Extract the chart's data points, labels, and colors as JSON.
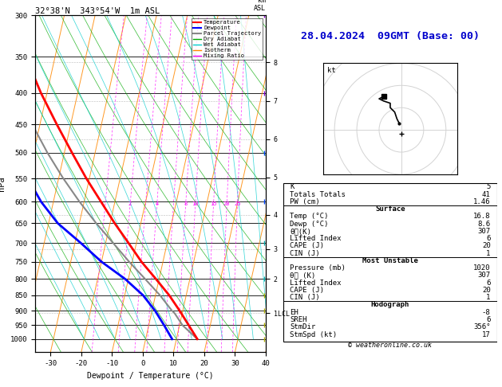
{
  "title_left": "32°38'N  343°54'W  1m ASL",
  "title_right": "28.04.2024  09GMT (Base: 00)",
  "xlabel": "Dewpoint / Temperature (°C)",
  "ylabel_left": "hPa",
  "ylabel_right": "km\nASL",
  "copyright": "© weatheronline.co.uk",
  "pressure_levels": [
    300,
    350,
    400,
    450,
    500,
    550,
    600,
    650,
    700,
    750,
    800,
    850,
    900,
    950,
    1000
  ],
  "pressure_labels": [
    "300",
    "350",
    "400",
    "450",
    "500",
    "550",
    "600",
    "650",
    "700",
    "750",
    "800",
    "850",
    "900",
    "950",
    "1000"
  ],
  "T_min": -35,
  "T_max": 40,
  "pmin": 300,
  "pmax": 1050,
  "skew_T_per_decade": 45.0,
  "legend_entries": [
    "Temperature",
    "Dewpoint",
    "Parcel Trajectory",
    "Dry Adiabat",
    "Wet Adiabat",
    "Isotherm",
    "Mixing Ratio"
  ],
  "legend_colors": [
    "#ff0000",
    "#0000ff",
    "#888888",
    "#00aa00",
    "#00cccc",
    "#ff8800",
    "#ff00ff"
  ],
  "km_pressures": [
    357,
    412,
    475,
    548,
    630,
    715,
    800,
    908
  ],
  "km_labels": [
    "8",
    "7",
    "6",
    "5",
    "4",
    "3",
    "2",
    "1LCL"
  ],
  "lcl_pressure": 908,
  "isotherm_color": "#ff8800",
  "dry_adiabat_color": "#00aa00",
  "wet_adiabat_color": "#00cccc",
  "mixing_ratio_color": "#ff00ff",
  "temp_line_color": "#ff0000",
  "dewp_line_color": "#0000ff",
  "parcel_color": "#888888",
  "temp_profile_p": [
    1000,
    950,
    900,
    850,
    800,
    750,
    700,
    650,
    600,
    550,
    500,
    450,
    400,
    350,
    300
  ],
  "temp_profile_T": [
    16.8,
    13.0,
    9.0,
    4.5,
    -1.0,
    -7.0,
    -12.5,
    -18.5,
    -24.5,
    -31.0,
    -37.5,
    -44.5,
    -52.0,
    -59.5,
    -66.0
  ],
  "dewp_profile_p": [
    1000,
    950,
    900,
    850,
    800,
    750,
    700,
    650,
    600,
    550,
    500,
    450,
    400,
    350,
    300
  ],
  "dewp_profile_T": [
    8.6,
    5.0,
    1.0,
    -4.0,
    -11.0,
    -20.0,
    -28.0,
    -37.0,
    -44.0,
    -50.0,
    -56.0,
    -62.0,
    -68.0,
    -73.0,
    -76.0
  ],
  "parcel_p": [
    1000,
    950,
    908,
    900,
    850,
    800,
    750,
    700,
    650,
    600,
    550,
    500,
    450,
    400,
    350,
    300
  ],
  "parcel_T": [
    16.8,
    11.0,
    7.5,
    6.5,
    1.5,
    -4.5,
    -11.0,
    -17.5,
    -24.5,
    -31.5,
    -38.5,
    -45.5,
    -52.5,
    -59.5,
    -66.0,
    -72.0
  ],
  "wind_pressures": [
    1000,
    950,
    900,
    850,
    800,
    700,
    600,
    500,
    400,
    300
  ],
  "wind_u": [
    -1,
    -1,
    -2,
    -3,
    -5,
    -5,
    -8,
    -10,
    -8,
    -6
  ],
  "wind_v": [
    3,
    4,
    5,
    8,
    10,
    12,
    13,
    14,
    15,
    16
  ],
  "mr_values": [
    1,
    2,
    3,
    4,
    6,
    8,
    10,
    15,
    20,
    25
  ],
  "mr_label_values": [
    2,
    4,
    8,
    10,
    15,
    20,
    25
  ],
  "surface_K": 5,
  "surface_TT": 41,
  "surface_PW": 1.46,
  "surface_temp": 16.8,
  "surface_dewp": 8.6,
  "surface_theta_e": 307,
  "surface_LI": 6,
  "surface_CAPE": 20,
  "surface_CIN": 1,
  "mu_pressure": 1020,
  "mu_theta_e": 307,
  "mu_LI": 6,
  "mu_CAPE": 20,
  "mu_CIN": 1,
  "hodo_EH": -8,
  "hodo_SREH": 6,
  "hodo_StmDir": "356°",
  "hodo_StmSpd": 17,
  "hodo_u": [
    -1,
    -2,
    -3,
    -5,
    -5,
    -8,
    -10,
    -8
  ],
  "hodo_v": [
    3,
    5,
    8,
    10,
    12,
    13,
    14,
    15
  ],
  "bg_color": "#ffffff"
}
